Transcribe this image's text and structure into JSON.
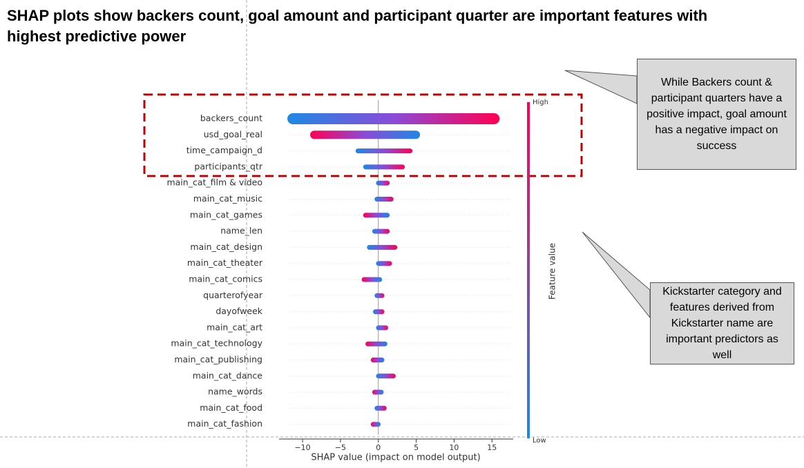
{
  "title": "SHAP plots show backers count, goal amount and participant quarter are important features with highest predictive power",
  "callouts": [
    "While Backers count & participant quarters have a positive impact, goal amount has a negative impact on success",
    "Kickstarter category and features derived from Kickstarter name are important predictors as well"
  ],
  "chart_data": {
    "type": "beeswarm",
    "xlabel": "SHAP value (impact on model output)",
    "colorbar_label": "Feature value",
    "colorbar_high": "High",
    "colorbar_low": "Low",
    "colorbar_colors": [
      "#ff0052",
      "#1e88e5"
    ],
    "categories": [
      "backers_count",
      "usd_goal_real",
      "time_campaign_d",
      "participants_qtr",
      "main_cat_film & video",
      "main_cat_music",
      "main_cat_games",
      "name_len",
      "main_cat_design",
      "main_cat_theater",
      "main_cat_comics",
      "quarterofyear",
      "dayofweek",
      "main_cat_art",
      "main_cat_technology",
      "main_cat_publishing",
      "main_cat_dance",
      "name_words",
      "main_cat_food",
      "main_cat_fashion"
    ],
    "low": [
      -12,
      -9,
      -3,
      -2,
      -0.3,
      -0.5,
      -2,
      -0.8,
      -1.5,
      -0.3,
      -2.2,
      -0.5,
      -0.7,
      -0.3,
      -1.7,
      -1,
      -0.3,
      -0.8,
      -0.5,
      -1
    ],
    "high": [
      16,
      5.5,
      4.5,
      3.5,
      1.5,
      2,
      1.5,
      1.5,
      2.5,
      1.8,
      0.5,
      0.8,
      0.8,
      1.3,
      1.2,
      0.8,
      2.3,
      0.7,
      1.1,
      0.3
    ],
    "xlim": [
      -13.1,
      17.8
    ],
    "xticks": [
      {
        "value": -10,
        "label": "−10"
      },
      {
        "value": -5,
        "label": "−5"
      },
      0,
      5,
      10,
      15
    ]
  }
}
